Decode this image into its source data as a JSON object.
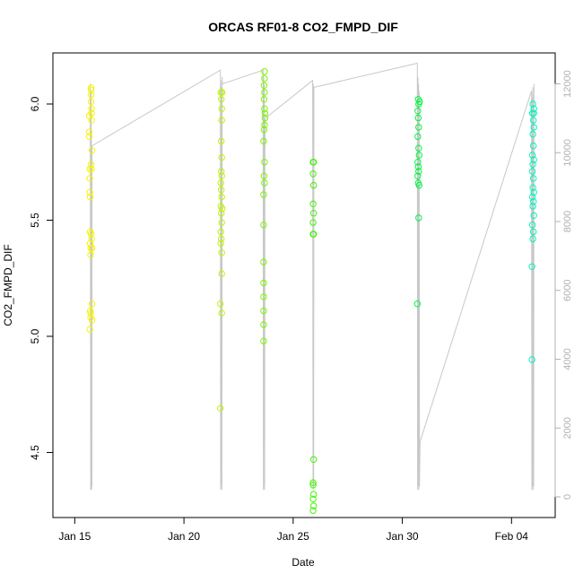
{
  "chart_data": {
    "type": "scatter",
    "title": "ORCAS RF01-8 CO2_FMPD_DIF",
    "xlabel": "Date",
    "ylabel": "CO2_FMPD_DIF",
    "xlim": [
      "2016-01-14",
      "2016-02-06"
    ],
    "ylim": [
      4.22,
      6.22
    ],
    "x_ticks": [
      "Jan 15",
      "Jan 20",
      "Jan 25",
      "Jan 30",
      "Feb 04"
    ],
    "x_tick_dates": [
      "2016-01-15",
      "2016-01-20",
      "2016-01-25",
      "2016-01-30",
      "2016-02-04"
    ],
    "y_ticks": [
      "4.5",
      "5.0",
      "5.5",
      "6.0"
    ],
    "y_tick_values": [
      4.5,
      5.0,
      5.5,
      6.0
    ],
    "right_axis": {
      "ylim": [
        -600,
        12900
      ],
      "ticks": [
        "0",
        "2000",
        "4000",
        "6000",
        "8000",
        "10000",
        "12000"
      ],
      "tick_values": [
        0,
        2000,
        4000,
        6000,
        8000,
        10000,
        12000
      ],
      "color": "#b0b0b0"
    },
    "series": [
      {
        "color": "#f5f500",
        "points": [
          [
            "2016-01-15 16:00",
            5.95
          ],
          [
            "2016-01-15 16:00",
            5.88
          ],
          [
            "2016-01-15 16:00",
            5.86
          ],
          [
            "2016-01-15 16:30",
            5.72
          ],
          [
            "2016-01-15 16:30",
            5.68
          ],
          [
            "2016-01-15 16:30",
            5.62
          ],
          [
            "2016-01-15 17:00",
            5.6
          ],
          [
            "2016-01-15 17:00",
            5.45
          ],
          [
            "2016-01-15 17:00",
            5.4
          ],
          [
            "2016-01-15 17:30",
            5.38
          ],
          [
            "2016-01-15 17:30",
            5.35
          ],
          [
            "2016-01-15 17:30",
            5.1
          ],
          [
            "2016-01-15 17:00",
            5.11
          ],
          [
            "2016-01-15 17:30",
            5.08
          ],
          [
            "2016-01-15 16:30",
            5.03
          ],
          [
            "2016-01-15 18:00",
            6.06
          ],
          [
            "2016-01-15 18:00",
            6.04
          ],
          [
            "2016-01-15 18:00",
            6.01
          ],
          [
            "2016-01-15 18:30",
            5.98
          ],
          [
            "2016-01-15 18:30",
            5.96
          ],
          [
            "2016-01-15 18:30",
            5.93
          ],
          [
            "2016-01-15 18:00",
            5.74
          ],
          [
            "2016-01-15 18:30",
            5.72
          ],
          [
            "2016-01-15 19:00",
            5.8
          ],
          [
            "2016-01-15 18:00",
            5.44
          ],
          [
            "2016-01-15 18:30",
            5.42
          ],
          [
            "2016-01-15 19:00",
            5.38
          ],
          [
            "2016-01-15 19:00",
            5.14
          ],
          [
            "2016-01-15 19:00",
            5.07
          ],
          [
            "2016-01-15 18:00",
            6.07
          ]
        ]
      },
      {
        "color": "#bdf500",
        "points": [
          [
            "2016-01-21 16:30",
            6.05
          ],
          [
            "2016-01-21 17:00",
            6.02
          ],
          [
            "2016-01-21 17:30",
            5.98
          ],
          [
            "2016-01-21 17:30",
            5.93
          ],
          [
            "2016-01-21 17:00",
            5.84
          ],
          [
            "2016-01-21 17:30",
            5.77
          ],
          [
            "2016-01-21 17:00",
            5.71
          ],
          [
            "2016-01-21 17:30",
            5.69
          ],
          [
            "2016-01-21 16:30",
            5.66
          ],
          [
            "2016-01-21 17:00",
            5.63
          ],
          [
            "2016-01-21 17:30",
            5.6
          ],
          [
            "2016-01-21 16:30",
            5.56
          ],
          [
            "2016-01-21 17:00",
            5.53
          ],
          [
            "2016-01-21 17:30",
            5.49
          ],
          [
            "2016-01-21 16:30",
            5.45
          ],
          [
            "2016-01-21 17:00",
            5.42
          ],
          [
            "2016-01-21 16:30",
            5.4
          ],
          [
            "2016-01-21 17:30",
            5.36
          ],
          [
            "2016-01-21 17:30",
            5.27
          ],
          [
            "2016-01-21 16:00",
            5.14
          ],
          [
            "2016-01-21 17:30",
            5.1
          ],
          [
            "2016-01-21 16:00",
            4.69
          ],
          [
            "2016-01-21 18:00",
            6.05
          ],
          [
            "2016-01-21 18:00",
            5.55
          ]
        ]
      },
      {
        "color": "#7ef500",
        "points": [
          [
            "2016-01-23 16:30",
            6.14
          ],
          [
            "2016-01-23 16:30",
            6.11
          ],
          [
            "2016-01-23 16:00",
            6.08
          ],
          [
            "2016-01-23 16:30",
            6.05
          ],
          [
            "2016-01-23 16:00",
            6.02
          ],
          [
            "2016-01-23 16:30",
            5.98
          ],
          [
            "2016-01-23 17:00",
            5.94
          ],
          [
            "2016-01-23 16:30",
            5.91
          ],
          [
            "2016-01-23 16:00",
            5.89
          ],
          [
            "2016-01-23 15:30",
            5.84
          ],
          [
            "2016-01-23 16:30",
            5.75
          ],
          [
            "2016-01-23 16:00",
            5.69
          ],
          [
            "2016-01-23 16:30",
            5.66
          ],
          [
            "2016-01-23 15:30",
            5.61
          ],
          [
            "2016-01-23 15:30",
            5.48
          ],
          [
            "2016-01-23 15:30",
            5.32
          ],
          [
            "2016-01-23 15:30",
            5.23
          ],
          [
            "2016-01-23 15:30",
            5.17
          ],
          [
            "2016-01-23 15:30",
            5.11
          ],
          [
            "2016-01-23 15:30",
            5.05
          ],
          [
            "2016-01-23 15:30",
            4.98
          ],
          [
            "2016-01-23 17:00",
            5.96
          ]
        ]
      },
      {
        "color": "#3ff500",
        "points": [
          [
            "2016-01-25 22:00",
            5.75
          ],
          [
            "2016-01-25 22:30",
            5.75
          ],
          [
            "2016-01-25 22:00",
            5.7
          ],
          [
            "2016-01-25 22:30",
            5.65
          ],
          [
            "2016-01-25 22:00",
            5.57
          ],
          [
            "2016-01-25 22:30",
            5.53
          ],
          [
            "2016-01-25 22:00",
            5.49
          ],
          [
            "2016-01-25 22:00",
            5.44
          ],
          [
            "2016-01-25 22:30",
            5.44
          ],
          [
            "2016-01-25 22:30",
            4.47
          ],
          [
            "2016-01-25 22:00",
            4.37
          ],
          [
            "2016-01-25 22:00",
            4.36
          ],
          [
            "2016-01-25 22:30",
            4.32
          ],
          [
            "2016-01-25 22:00",
            4.3
          ],
          [
            "2016-01-25 22:30",
            4.27
          ],
          [
            "2016-01-25 22:00",
            4.25
          ]
        ]
      },
      {
        "color": "#00f53f",
        "points": [
          [
            "2016-01-30 17:30",
            6.02
          ],
          [
            "2016-01-30 18:00",
            6.0
          ],
          [
            "2016-01-30 17:00",
            5.97
          ],
          [
            "2016-01-30 17:30",
            5.94
          ],
          [
            "2016-01-30 18:00",
            5.9
          ],
          [
            "2016-01-30 17:00",
            5.86
          ],
          [
            "2016-01-30 18:00",
            5.81
          ],
          [
            "2016-01-30 18:30",
            5.78
          ],
          [
            "2016-01-30 17:00",
            5.75
          ],
          [
            "2016-01-30 17:30",
            5.73
          ],
          [
            "2016-01-30 18:00",
            5.71
          ],
          [
            "2016-01-30 17:00",
            5.69
          ],
          [
            "2016-01-30 17:30",
            5.66
          ],
          [
            "2016-01-30 18:30",
            5.65
          ],
          [
            "2016-01-30 18:00",
            5.51
          ],
          [
            "2016-01-30 16:30",
            5.14
          ],
          [
            "2016-01-30 19:00",
            6.01
          ]
        ]
      },
      {
        "color": "#00f5bd",
        "points": [
          [
            "2016-02-04 23:30",
            6.0
          ],
          [
            "2016-02-05 00:30",
            5.98
          ],
          [
            "2016-02-04 23:00",
            5.96
          ],
          [
            "2016-02-05 00:00",
            5.93
          ],
          [
            "2016-02-05 00:30",
            5.9
          ],
          [
            "2016-02-04 23:30",
            5.87
          ],
          [
            "2016-02-05 00:00",
            5.82
          ],
          [
            "2016-02-04 23:00",
            5.78
          ],
          [
            "2016-02-05 00:30",
            5.76
          ],
          [
            "2016-02-04 23:30",
            5.74
          ],
          [
            "2016-02-04 23:00",
            5.71
          ],
          [
            "2016-02-05 00:00",
            5.68
          ],
          [
            "2016-02-04 23:30",
            5.64
          ],
          [
            "2016-02-05 00:30",
            5.62
          ],
          [
            "2016-02-04 23:00",
            5.6
          ],
          [
            "2016-02-05 00:00",
            5.58
          ],
          [
            "2016-02-04 23:30",
            5.56
          ],
          [
            "2016-02-05 00:30",
            5.52
          ],
          [
            "2016-02-04 23:00",
            5.48
          ],
          [
            "2016-02-05 00:00",
            5.45
          ],
          [
            "2016-02-04 23:30",
            5.42
          ],
          [
            "2016-02-04 22:30",
            5.3
          ],
          [
            "2016-02-04 22:30",
            4.9
          ],
          [
            "2016-02-05 00:30",
            5.96
          ]
        ]
      }
    ],
    "right_axis_line": {
      "color": "#c8c8c8",
      "points": [
        [
          "2016-01-15 17:00",
          12000
        ],
        [
          "2016-01-15 17:30",
          200
        ],
        [
          "2016-01-15 18:00",
          11800
        ],
        [
          "2016-01-15 18:10",
          300
        ],
        [
          "2016-01-15 18:20",
          10400
        ],
        [
          "2016-01-15 18:30",
          200
        ],
        [
          "2016-01-15 18:40",
          9800
        ],
        [
          "2016-01-15 18:50",
          300
        ],
        [
          "2016-01-15 19:00",
          10200
        ],
        [
          "2016-01-21 16:00",
          12400
        ],
        [
          "2016-01-21 16:20",
          200
        ],
        [
          "2016-01-21 16:40",
          12100
        ],
        [
          "2016-01-21 17:00",
          300
        ],
        [
          "2016-01-21 17:20",
          11900
        ],
        [
          "2016-01-21 17:40",
          200
        ],
        [
          "2016-01-21 18:00",
          12200
        ],
        [
          "2016-01-21 18:20",
          12000
        ],
        [
          "2016-01-23 15:00",
          12400
        ],
        [
          "2016-01-23 15:20",
          200
        ],
        [
          "2016-01-23 15:40",
          12200
        ],
        [
          "2016-01-23 16:00",
          300
        ],
        [
          "2016-01-23 16:20",
          12000
        ],
        [
          "2016-01-23 16:40",
          200
        ],
        [
          "2016-01-23 17:00",
          10000
        ],
        [
          "2016-01-23 17:20",
          11000
        ],
        [
          "2016-01-25 21:30",
          12100
        ],
        [
          "2016-01-25 21:50",
          200
        ],
        [
          "2016-01-25 22:10",
          12000
        ],
        [
          "2016-01-25 22:30",
          300
        ],
        [
          "2016-01-25 22:50",
          11900
        ],
        [
          "2016-01-30 16:30",
          12600
        ],
        [
          "2016-01-30 16:50",
          200
        ],
        [
          "2016-01-30 17:10",
          12200
        ],
        [
          "2016-01-30 17:30",
          300
        ],
        [
          "2016-01-30 17:50",
          12000
        ],
        [
          "2016-01-30 18:10",
          200
        ],
        [
          "2016-01-30 18:30",
          11800
        ],
        [
          "2016-01-30 18:50",
          300
        ],
        [
          "2016-01-30 19:30",
          1600
        ],
        [
          "2016-02-04 22:00",
          11800
        ],
        [
          "2016-02-04 22:20",
          200
        ],
        [
          "2016-02-04 22:40",
          11600
        ],
        [
          "2016-02-04 23:00",
          300
        ],
        [
          "2016-02-04 23:20",
          11900
        ],
        [
          "2016-02-04 23:40",
          200
        ],
        [
          "2016-02-05 00:00",
          11700
        ],
        [
          "2016-02-05 00:20",
          300
        ],
        [
          "2016-02-05 00:40",
          12000
        ]
      ]
    }
  }
}
